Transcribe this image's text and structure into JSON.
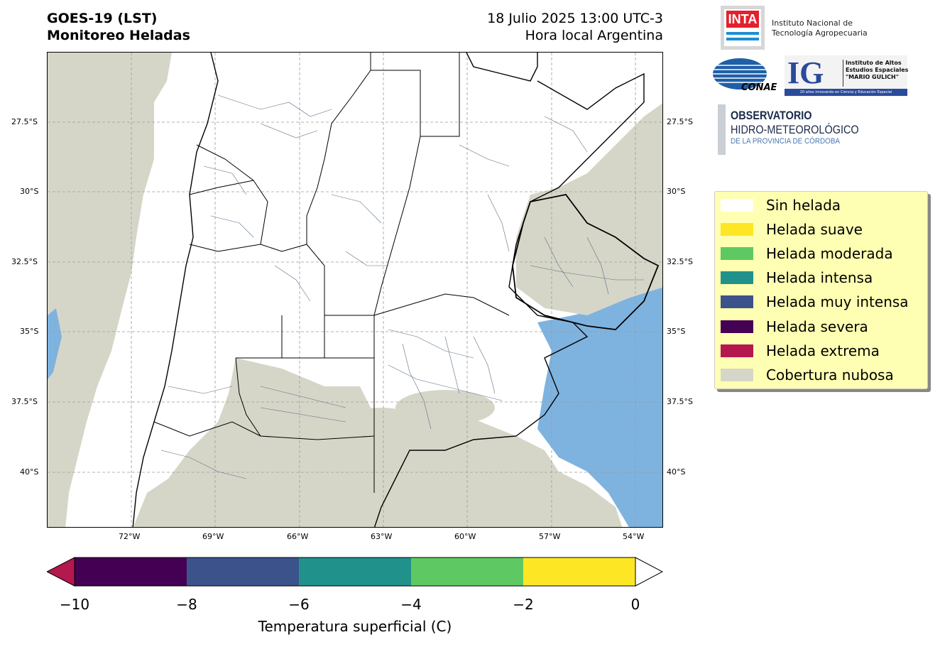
{
  "header": {
    "title_line1": "GOES-19 (LST)",
    "title_line2": "Monitoreo Heladas",
    "date_line1": "18 Julio 2025 13:00 UTC-3",
    "date_line2": "Hora local Argentina"
  },
  "map": {
    "lat_ticks": [
      "27.5°S",
      "30°S",
      "32.5°S",
      "35°S",
      "37.5°S",
      "40°S"
    ],
    "lon_ticks": [
      "72°W",
      "69°W",
      "66°W",
      "63°W",
      "60°W",
      "57°W",
      "54°W"
    ],
    "colors": {
      "cloud": "#d6d6c8",
      "land_clear": "#ffffff",
      "ocean": "#7fb3df",
      "border_province": "#000000",
      "border_department": "#5a6e85"
    }
  },
  "logos": {
    "inta_mark": "INTA",
    "inta_name_line1": "Instituto Nacional de",
    "inta_name_line2": "Tecnología Agropecuaria",
    "conae_mark": "CONAE",
    "ig_mark": "IG",
    "ig_name_line1": "Instituto de Altos",
    "ig_name_line2": "Estudios Espaciales",
    "ig_name_line3": "\"MARIO GULICH\"",
    "ig_tagline": "20 años innovando en Ciencia y Educación Espacial",
    "obs_line1": "OBSERVATORIO",
    "obs_line2": "HIDRO-METEOROLÓGICO",
    "obs_line3": "DE LA PROVINCIA DE CÓRDOBA"
  },
  "legend": {
    "items": [
      {
        "label": "Sin helada",
        "color": "#ffffff"
      },
      {
        "label": "Helada suave",
        "color": "#fde725"
      },
      {
        "label": "Helada moderada",
        "color": "#5ec962"
      },
      {
        "label": "Helada intensa",
        "color": "#21918c"
      },
      {
        "label": "Helada muy intensa",
        "color": "#3b528b"
      },
      {
        "label": "Helada severa",
        "color": "#440154"
      },
      {
        "label": "Helada extrema",
        "color": "#b5174f"
      },
      {
        "label": "Cobertura nubosa",
        "color": "#d6d6c8"
      }
    ]
  },
  "colorbar": {
    "title": "Temperatura superficial (C)",
    "ticks": [
      "−10",
      "−8",
      "−6",
      "−4",
      "−2",
      "0"
    ],
    "under_color": "#b5174f",
    "over_color": "#ffffff",
    "segments": [
      {
        "color": "#440154"
      },
      {
        "color": "#3b528b"
      },
      {
        "color": "#21918c"
      },
      {
        "color": "#5ec962"
      },
      {
        "color": "#fde725"
      }
    ]
  }
}
